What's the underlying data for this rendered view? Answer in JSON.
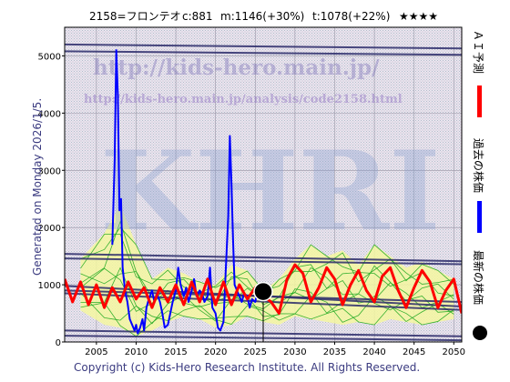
{
  "header": {
    "code_name": "2158=フロンテオ",
    "current": "c:881",
    "max": "m:1146(+30%)",
    "target": "t:1078(+22%)",
    "rating": "★★★★"
  },
  "watermark": {
    "url_main": "http://kids-hero.main.jp/",
    "url_analysis": "http://kids-hero.main.jp/analysis/code2158.html",
    "big": "KHRI"
  },
  "generated_label": "Generated on Monday 2026/1/5.",
  "copyright": "Copyright (c) Kids-Hero Research Institute. All Rights Reserved.",
  "legend": {
    "ai_forecast": "ＡＩ予測",
    "past_price": "過去の株価",
    "latest_price": "最新の株価"
  },
  "colors": {
    "price_line": "#0000ff",
    "forecast_line": "#ff0000",
    "band_fill": "#f4f7a0",
    "band_lines": "#22aa22",
    "trend_lines": "#2a2a6a",
    "plot_bg": "#d9d9e4",
    "latest_marker": "#000000"
  },
  "chart_data": {
    "type": "line",
    "xlim": [
      2001,
      2051
    ],
    "ylim": [
      0,
      5500
    ],
    "x_ticks": [
      2005,
      2010,
      2015,
      2020,
      2025,
      2030,
      2035,
      2040,
      2045,
      2050
    ],
    "y_ticks": [
      0,
      1000,
      2000,
      3000,
      4000,
      5000
    ],
    "grid": true,
    "latest_point": {
      "x": 2026.0,
      "y": 881
    },
    "trend_lines": [
      {
        "x": [
          2001,
          2051
        ],
        "y": [
          5200,
          5130
        ]
      },
      {
        "x": [
          2001,
          2051
        ],
        "y": [
          5080,
          5020
        ]
      },
      {
        "x": [
          2001,
          2051
        ],
        "y": [
          1540,
          1410
        ]
      },
      {
        "x": [
          2001,
          2051
        ],
        "y": [
          1460,
          1360
        ]
      },
      {
        "x": [
          2001,
          2051
        ],
        "y": [
          980,
          620
        ]
      },
      {
        "x": [
          2001,
          2051
        ],
        "y": [
          900,
          700
        ]
      },
      {
        "x": [
          2001,
          2051
        ],
        "y": [
          850,
          560
        ]
      },
      {
        "x": [
          2001,
          2051
        ],
        "y": [
          200,
          100
        ]
      },
      {
        "x": [
          2001,
          2051
        ],
        "y": [
          110,
          30
        ]
      }
    ],
    "band": {
      "x": [
        2003,
        2006,
        2008,
        2010,
        2012,
        2014,
        2016,
        2018,
        2020,
        2022,
        2024,
        2026,
        2028,
        2030,
        2032,
        2034,
        2036,
        2038,
        2040,
        2042,
        2044,
        2046,
        2048,
        2050
      ],
      "upper": [
        1450,
        1900,
        2400,
        1700,
        1100,
        1300,
        1200,
        1050,
        1000,
        1350,
        1250,
        900,
        1100,
        1450,
        1700,
        1500,
        1600,
        1350,
        1700,
        1500,
        1300,
        1400,
        1250,
        1100
      ],
      "lower": [
        550,
        300,
        250,
        100,
        200,
        350,
        450,
        400,
        250,
        300,
        450,
        350,
        300,
        450,
        400,
        350,
        300,
        350,
        300,
        400,
        350,
        300,
        350,
        400
      ]
    },
    "series": [
      {
        "color": "#0000ff",
        "x": [
          2007.0,
          2007.3,
          2007.5,
          2007.7,
          2007.9,
          2008.1,
          2008.3,
          2008.6,
          2008.9,
          2009.2,
          2009.5,
          2009.8,
          2010.0,
          2010.2,
          2010.5,
          2010.8,
          2011.0,
          2011.3,
          2011.6,
          2012.0,
          2012.3,
          2012.6,
          2013.0,
          2013.3,
          2013.6,
          2014.0,
          2014.3,
          2014.6,
          2015.0,
          2015.3,
          2015.6,
          2016.0,
          2016.3,
          2016.6,
          2017.0,
          2017.3,
          2017.6,
          2018.0,
          2018.3,
          2018.6,
          2019.0,
          2019.3,
          2019.6,
          2020.0,
          2020.3,
          2020.6,
          2021.0,
          2021.3,
          2021.6,
          2021.8,
          2022.0,
          2022.2,
          2022.4,
          2022.7,
          2023.0,
          2023.3,
          2023.6,
          2024.0,
          2024.3,
          2024.6,
          2025.0,
          2025.3,
          2025.6,
          2026.0
        ],
        "y": [
          1700,
          3200,
          5100,
          4300,
          2300,
          2500,
          1300,
          900,
          700,
          400,
          300,
          200,
          300,
          150,
          250,
          400,
          200,
          600,
          750,
          900,
          700,
          850,
          700,
          500,
          250,
          300,
          500,
          700,
          900,
          1300,
          1000,
          800,
          950,
          700,
          900,
          1100,
          800,
          900,
          850,
          700,
          800,
          1300,
          600,
          500,
          250,
          200,
          350,
          1300,
          2200,
          3600,
          2800,
          1800,
          1000,
          900,
          800,
          700,
          850,
          800,
          600,
          750,
          700,
          900,
          800,
          881
        ]
      },
      {
        "color": "#ff0000",
        "x": [
          2001,
          2002,
          2003,
          2004,
          2005,
          2006,
          2007,
          2008,
          2009,
          2010,
          2011,
          2012,
          2013,
          2014,
          2015,
          2016,
          2017,
          2018,
          2019,
          2020,
          2021,
          2022,
          2023,
          2024,
          2025,
          2026,
          2027,
          2028,
          2029,
          2030,
          2031,
          2032,
          2033,
          2034,
          2035,
          2036,
          2037,
          2038,
          2039,
          2040,
          2041,
          2042,
          2043,
          2044,
          2045,
          2046,
          2047,
          2048,
          2049,
          2050,
          2051
        ],
        "y": [
          1100,
          700,
          1050,
          650,
          1000,
          600,
          950,
          700,
          1050,
          750,
          950,
          600,
          950,
          700,
          1000,
          650,
          1050,
          700,
          1100,
          650,
          1050,
          650,
          1000,
          750,
          950,
          800,
          700,
          500,
          1100,
          1350,
          1200,
          700,
          950,
          1300,
          1100,
          650,
          1000,
          1250,
          900,
          700,
          1150,
          1300,
          900,
          600,
          950,
          1250,
          1050,
          600,
          900,
          1100,
          500
        ]
      }
    ]
  }
}
